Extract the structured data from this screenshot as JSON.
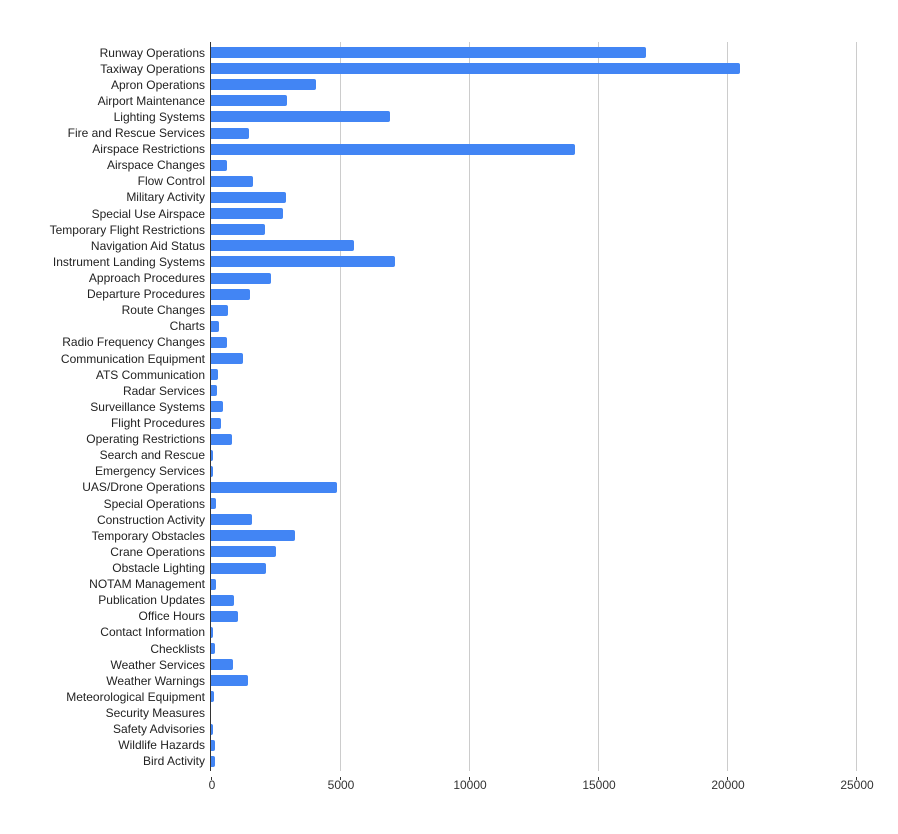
{
  "chart_data": {
    "type": "bar",
    "orientation": "horizontal",
    "title": "",
    "xlabel": "",
    "ylabel": "",
    "xlim": [
      0,
      25000
    ],
    "x_ticks": [
      0,
      5000,
      10000,
      15000,
      20000,
      25000
    ],
    "x_tick_labels": [
      "0",
      "5000",
      "10000",
      "15000",
      "20000",
      "25000"
    ],
    "grid": true,
    "legend": null,
    "bar_color": "#4285f4",
    "categories": [
      "Runway Operations",
      "Taxiway Operations",
      "Apron Operations",
      "Airport Maintenance",
      "Lighting Systems",
      "Fire and Rescue Services",
      "Airspace Restrictions",
      "Airspace Changes",
      "Flow Control",
      "Military Activity",
      "Special Use Airspace",
      "Temporary Flight Restrictions",
      "Navigation Aid Status",
      "Instrument Landing Systems",
      "Approach Procedures",
      "Departure Procedures",
      "Route Changes",
      "Charts",
      "Radio Frequency Changes",
      "Communication Equipment",
      "ATS Communication",
      "Radar Services",
      "Surveillance Systems",
      "Flight Procedures",
      "Operating Restrictions",
      "Search and Rescue",
      "Emergency Services",
      "UAS/Drone Operations",
      "Special Operations",
      "Construction Activity",
      "Temporary Obstacles",
      "Crane Operations",
      "Obstacle Lighting",
      "NOTAM Management",
      "Publication Updates",
      "Office Hours",
      "Contact Information",
      "Checklists",
      "Weather Services",
      "Weather Warnings",
      "Meteorological Equipment",
      "Security Measures",
      "Safety Advisories",
      "Wildlife Hazards",
      "Bird Activity"
    ],
    "values": [
      16850,
      20500,
      4080,
      2950,
      6930,
      1490,
      14120,
      630,
      1630,
      2890,
      2800,
      2100,
      5550,
      7140,
      2330,
      1520,
      670,
      320,
      630,
      1250,
      280,
      240,
      470,
      400,
      820,
      90,
      90,
      4900,
      200,
      1600,
      3240,
      2500,
      2150,
      200,
      910,
      1050,
      90,
      160,
      860,
      1440,
      120,
      0,
      90,
      160,
      160
    ]
  }
}
